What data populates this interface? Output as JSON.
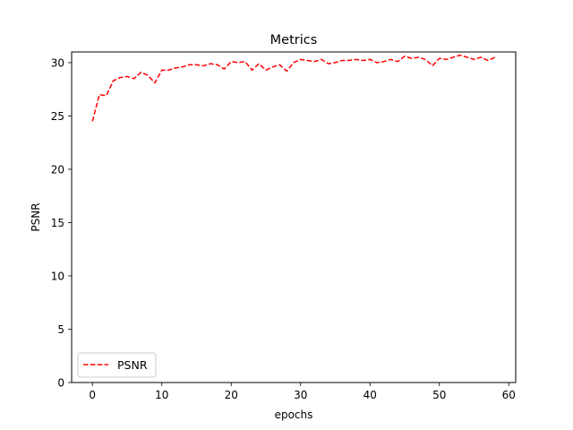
{
  "chart_data": {
    "type": "line",
    "title": "Metrics",
    "xlabel": "epochs",
    "ylabel": "PSNR",
    "xlim": [
      -3,
      61
    ],
    "ylim": [
      0,
      31
    ],
    "xticks": [
      0,
      10,
      20,
      30,
      40,
      50,
      60
    ],
    "yticks": [
      0,
      5,
      10,
      15,
      20,
      25,
      30
    ],
    "grid": false,
    "legend_position": "lower-left",
    "series": [
      {
        "name": "PSNR",
        "color": "#ff0000",
        "line_style": "dashed",
        "x": [
          0,
          1,
          2,
          3,
          4,
          5,
          6,
          7,
          8,
          9,
          10,
          11,
          12,
          13,
          14,
          15,
          16,
          17,
          18,
          19,
          20,
          21,
          22,
          23,
          24,
          25,
          26,
          27,
          28,
          29,
          30,
          31,
          32,
          33,
          34,
          35,
          36,
          37,
          38,
          39,
          40,
          41,
          42,
          43,
          44,
          45,
          46,
          47,
          48,
          49,
          50,
          51,
          52,
          53,
          54,
          55,
          56,
          57,
          58
        ],
        "y": [
          24.5,
          27.0,
          26.9,
          28.3,
          28.6,
          28.7,
          28.5,
          29.1,
          28.8,
          28.1,
          29.3,
          29.3,
          29.5,
          29.6,
          29.8,
          29.8,
          29.7,
          29.9,
          29.8,
          29.4,
          30.1,
          30.0,
          30.1,
          29.3,
          29.9,
          29.3,
          29.6,
          29.8,
          29.2,
          30.0,
          30.3,
          30.2,
          30.1,
          30.3,
          29.9,
          30.0,
          30.2,
          30.2,
          30.3,
          30.2,
          30.3,
          30.0,
          30.1,
          30.3,
          30.1,
          30.6,
          30.4,
          30.5,
          30.3,
          29.7,
          30.4,
          30.3,
          30.5,
          30.7,
          30.5,
          30.3,
          30.5,
          30.2,
          30.5
        ]
      }
    ]
  }
}
